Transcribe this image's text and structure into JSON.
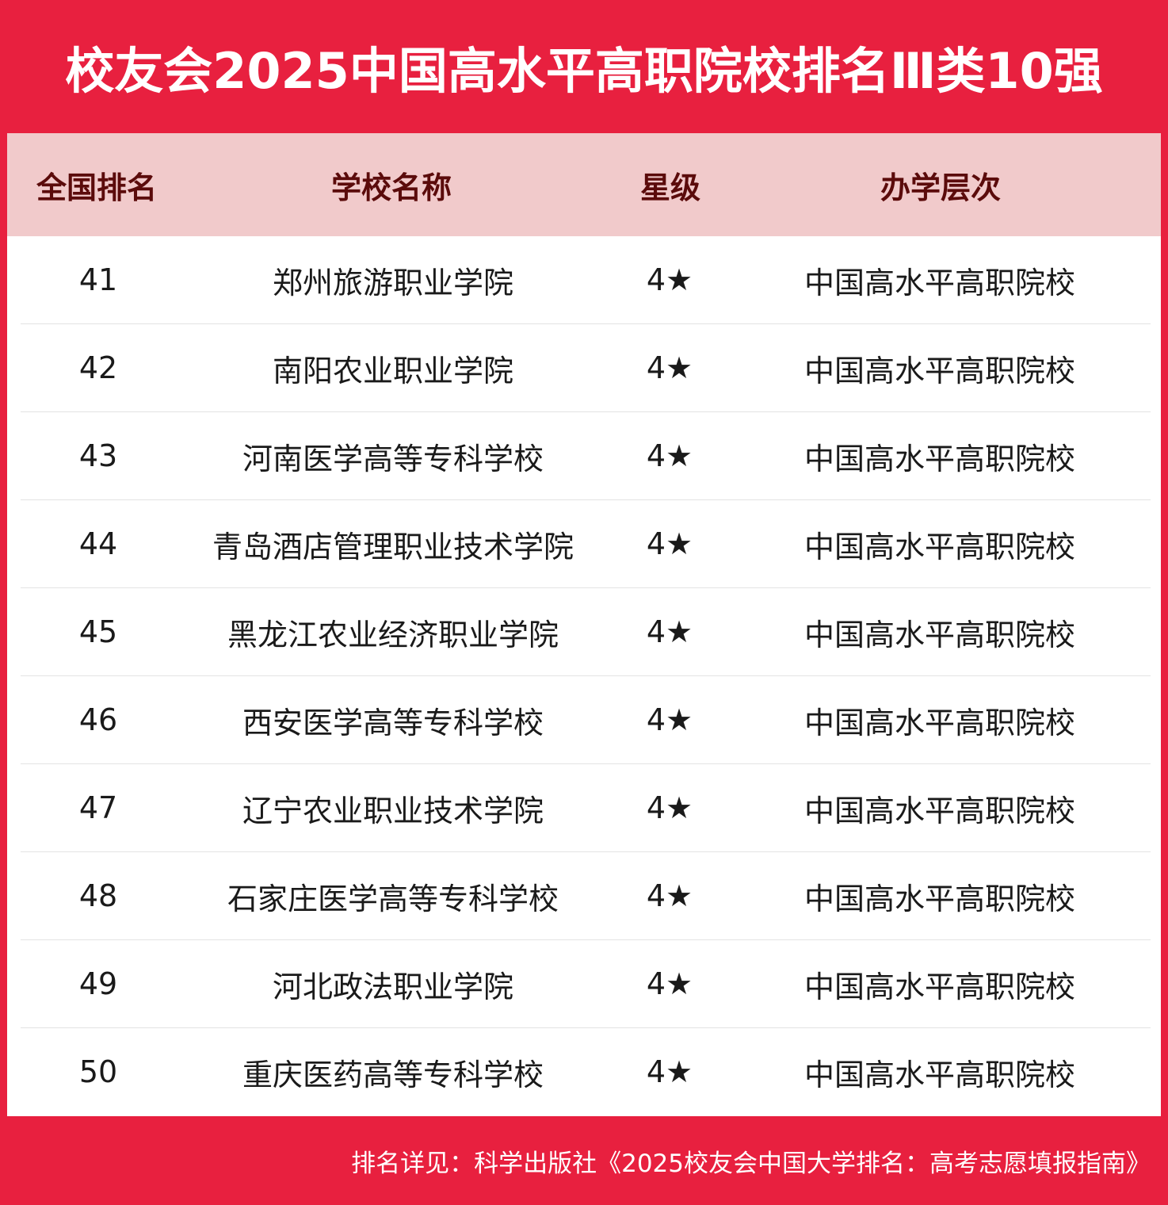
{
  "title": "校友会2025中国高水平高职院校排名Ⅲ类10强",
  "header": {
    "rank": "全国排名",
    "name": "学校名称",
    "star": "星级",
    "level": "办学层次"
  },
  "rows": [
    {
      "rank": "41",
      "name": "郑州旅游职业学院",
      "star": "4★",
      "level": "中国高水平高职院校"
    },
    {
      "rank": "42",
      "name": "南阳农业职业学院",
      "star": "4★",
      "level": "中国高水平高职院校"
    },
    {
      "rank": "43",
      "name": "河南医学高等专科学校",
      "star": "4★",
      "level": "中国高水平高职院校"
    },
    {
      "rank": "44",
      "name": "青岛酒店管理职业技术学院",
      "star": "4★",
      "level": "中国高水平高职院校"
    },
    {
      "rank": "45",
      "name": "黑龙江农业经济职业学院",
      "star": "4★",
      "level": "中国高水平高职院校"
    },
    {
      "rank": "46",
      "name": "西安医学高等专科学校",
      "star": "4★",
      "level": "中国高水平高职院校"
    },
    {
      "rank": "47",
      "name": "辽宁农业职业技术学院",
      "star": "4★",
      "level": "中国高水平高职院校"
    },
    {
      "rank": "48",
      "name": "石家庄医学高等专科学校",
      "star": "4★",
      "level": "中国高水平高职院校"
    },
    {
      "rank": "49",
      "name": "河北政法职业学院",
      "star": "4★",
      "level": "中国高水平高职院校"
    },
    {
      "rank": "50",
      "name": "重庆医药高等专科学校",
      "star": "4★",
      "level": "中国高水平高职院校"
    }
  ],
  "footer": "排名详见：科学出版社《2025校友会中国大学排名：高考志愿填报指南》",
  "colors": {
    "brand_red": "#e8203f",
    "header_bg": "#f1cacb",
    "header_text": "#5b0b0b"
  }
}
